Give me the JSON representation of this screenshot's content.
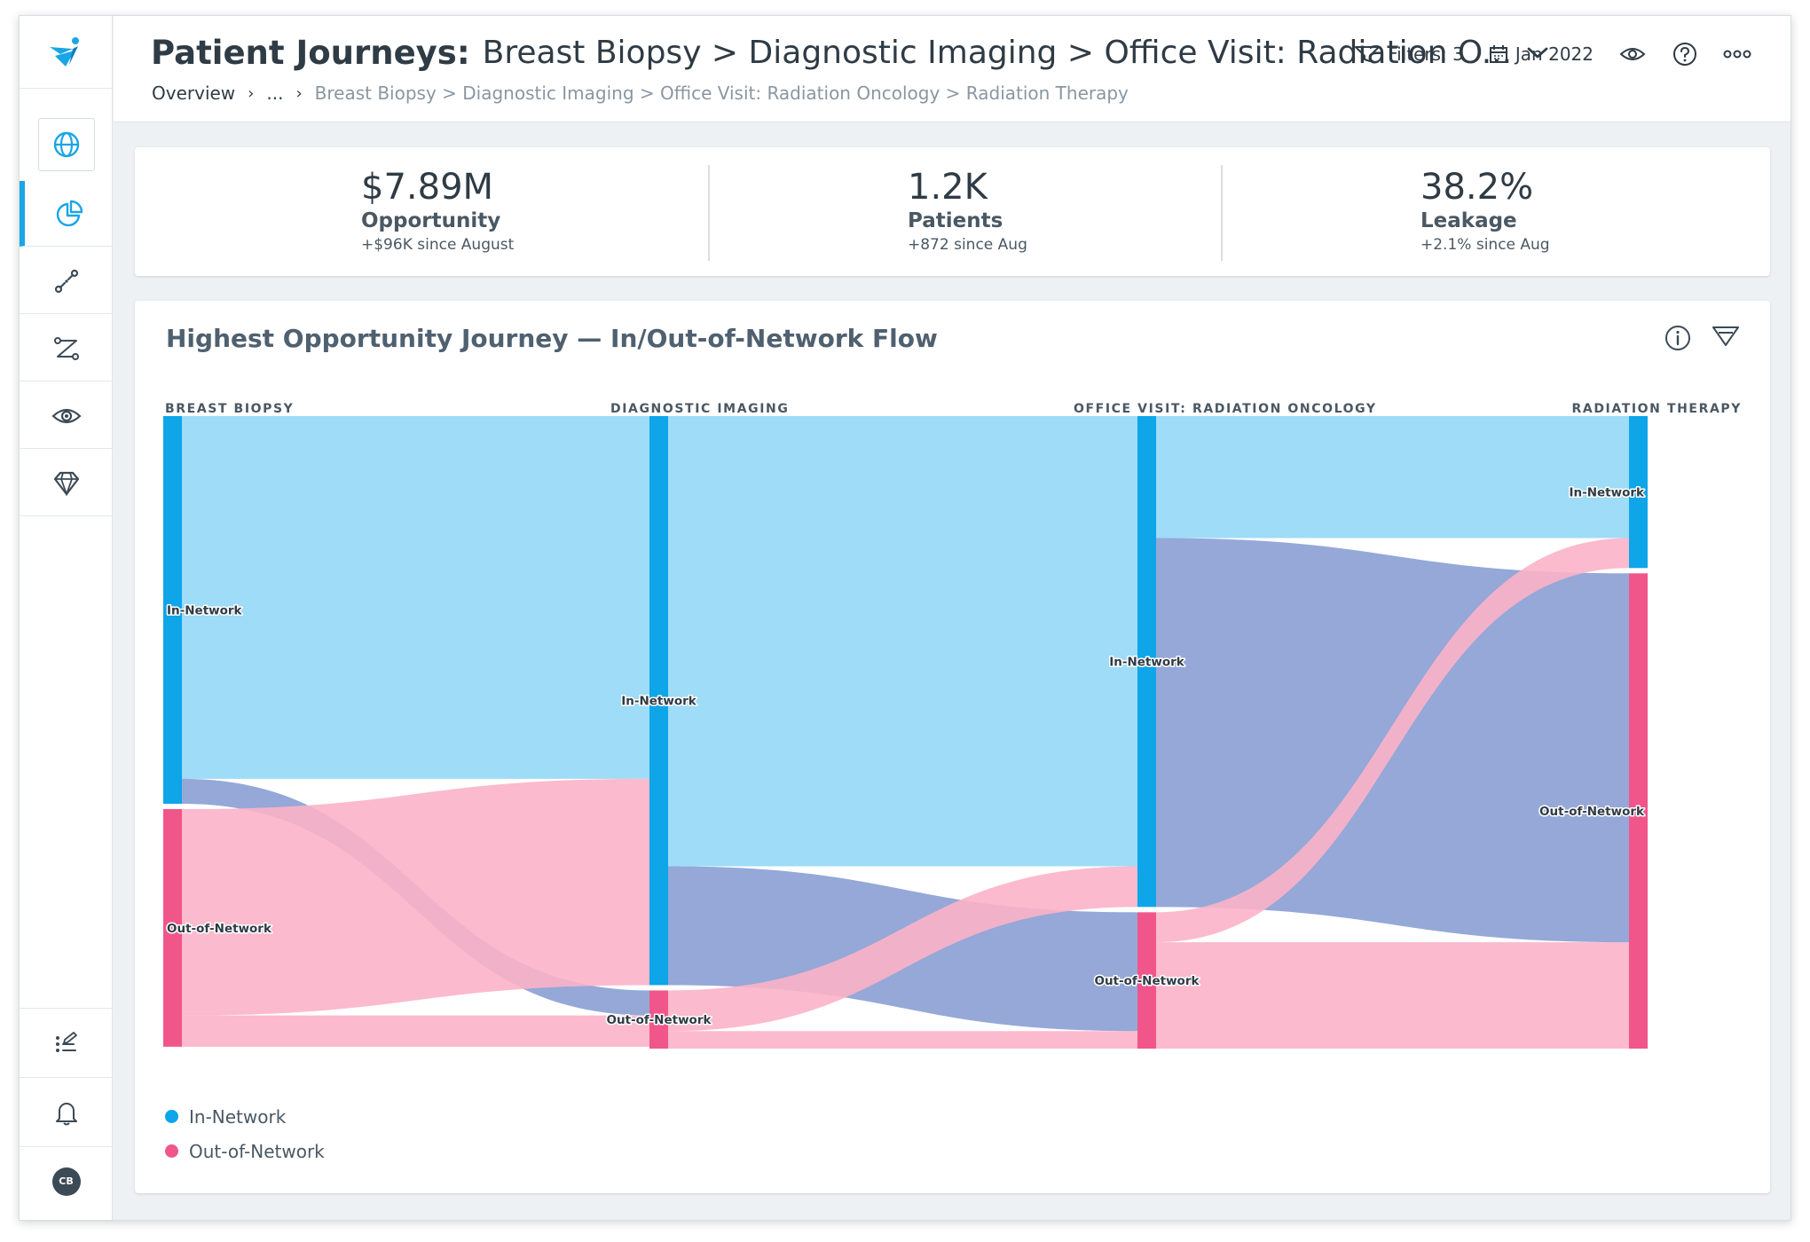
{
  "header": {
    "title_bold": "Patient Journeys:",
    "title_path": "Breast Biopsy > Diagnostic Imaging > Office Visit: Radiation O...",
    "breadcrumb": {
      "overview": "Overview",
      "ellipsis": "...",
      "path": "Breast Biopsy > Diagnostic Imaging > Office Visit: Radiation Oncology > Radiation Therapy"
    },
    "filters_label": "Filters: 3",
    "date_label": "Jan 2022"
  },
  "sidebar": {
    "items": [
      "globe-icon",
      "pie-chart-icon",
      "journey-icon",
      "flow-icon",
      "eye-icon",
      "diamond-icon"
    ],
    "bottom": [
      "checklist-icon",
      "bell-icon"
    ],
    "avatar_initials": "CB"
  },
  "kpis": [
    {
      "value": "$7.89M",
      "label": "Opportunity",
      "sub": "+$96K since August"
    },
    {
      "value": "1.2K",
      "label": "Patients",
      "sub": "+872 since Aug"
    },
    {
      "value": "38.2%",
      "label": "Leakage",
      "sub": "+2.1% since Aug"
    }
  ],
  "chart": {
    "title": "Highest Opportunity Journey — In/Out-of-Network Flow",
    "stages": [
      "BREAST BIOPSY",
      "DIAGNOSTIC IMAGING",
      "OFFICE VISIT: RADIATION ONCOLOGY",
      "RADIATION THERAPY"
    ],
    "legend": [
      {
        "label": "In-Network",
        "color": "#0ea5e9"
      },
      {
        "label": "Out-of-Network",
        "color": "#f0568a"
      }
    ]
  },
  "chart_data": {
    "type": "sankey",
    "stages": [
      "Breast Biopsy",
      "Diagnostic Imaging",
      "Office Visit: Radiation Oncology",
      "Radiation Therapy"
    ],
    "nodes": [
      {
        "id": "bb_in",
        "stage": 0,
        "label": "In-Network",
        "kind": "in"
      },
      {
        "id": "bb_out",
        "stage": 0,
        "label": "Out-of-Network",
        "kind": "out"
      },
      {
        "id": "di_in",
        "stage": 1,
        "label": "In-Network",
        "kind": "in"
      },
      {
        "id": "di_out",
        "stage": 1,
        "label": "Out-of-Network",
        "kind": "out"
      },
      {
        "id": "ov_in",
        "stage": 2,
        "label": "In-Network",
        "kind": "in"
      },
      {
        "id": "ov_out",
        "stage": 2,
        "label": "Out-of-Network",
        "kind": "out"
      },
      {
        "id": "rt_in",
        "stage": 3,
        "label": "In-Network",
        "kind": "in"
      },
      {
        "id": "rt_out",
        "stage": 3,
        "label": "Out-of-Network",
        "kind": "out"
      }
    ],
    "links": [
      {
        "source": "bb_in",
        "target": "di_in",
        "value": 580
      },
      {
        "source": "bb_in",
        "target": "di_out",
        "value": 40
      },
      {
        "source": "bb_out",
        "target": "di_in",
        "value": 330
      },
      {
        "source": "bb_out",
        "target": "di_out",
        "value": 50
      },
      {
        "source": "di_in",
        "target": "ov_in",
        "value": 720
      },
      {
        "source": "di_in",
        "target": "ov_out",
        "value": 190
      },
      {
        "source": "di_out",
        "target": "ov_in",
        "value": 65
      },
      {
        "source": "di_out",
        "target": "ov_out",
        "value": 28
      },
      {
        "source": "ov_in",
        "target": "rt_in",
        "value": 195
      },
      {
        "source": "ov_in",
        "target": "rt_out",
        "value": 590
      },
      {
        "source": "ov_out",
        "target": "rt_in",
        "value": 48
      },
      {
        "source": "ov_out",
        "target": "rt_out",
        "value": 170
      }
    ],
    "colors": {
      "in": "#0ea5e9",
      "out": "#f0568a",
      "in_link": "#93d8f6",
      "out_link": "#fbb3c8",
      "cross_link": "#8fa3d6"
    }
  }
}
